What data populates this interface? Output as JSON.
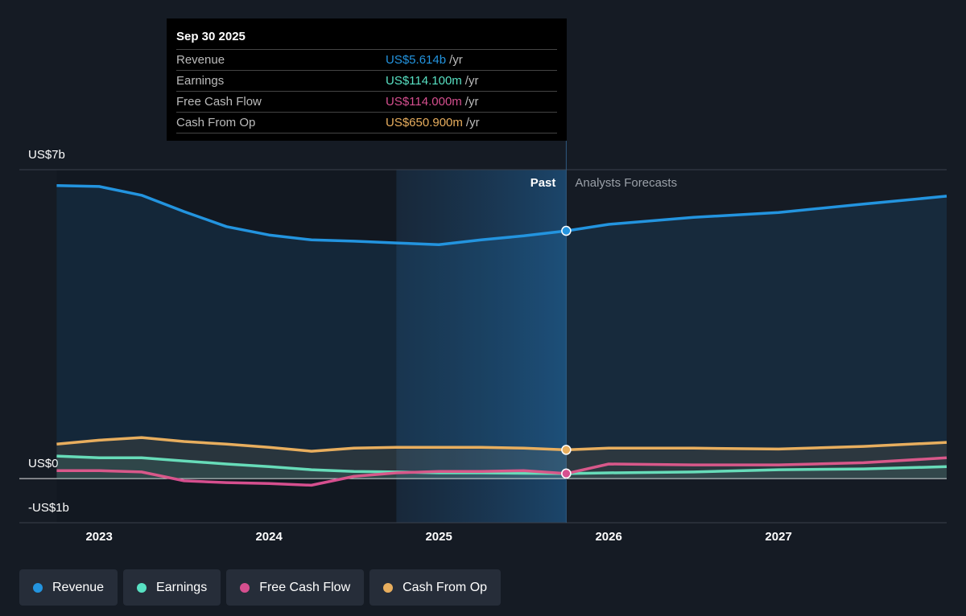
{
  "chart_data": {
    "type": "line",
    "xlim": [
      2022.53,
      2027.99
    ],
    "xticks": [
      2023,
      2024,
      2025,
      2026,
      2027
    ],
    "ylim": [
      -1,
      7
    ],
    "yticks": [
      {
        "value": 7,
        "label": "US$7b"
      },
      {
        "value": 0,
        "label": "US$0"
      },
      {
        "value": -1,
        "label": "-US$1b"
      }
    ],
    "grid": true,
    "past_label": "Past",
    "forecast_label": "Analysts Forecasts",
    "forecast_start": 2025.75,
    "past_shade": [
      2024.75,
      2025.75
    ],
    "x": [
      2022.75,
      2023.0,
      2023.25,
      2023.5,
      2023.75,
      2024.0,
      2024.25,
      2024.5,
      2024.75,
      2025.0,
      2025.25,
      2025.5,
      2025.75,
      2026.0,
      2026.5,
      2027.0,
      2027.5,
      2027.99
    ],
    "series": [
      {
        "name": "Revenue",
        "color": "#2394df",
        "area": true,
        "values": [
          6.64,
          6.62,
          6.42,
          6.05,
          5.71,
          5.52,
          5.41,
          5.38,
          5.34,
          5.3,
          5.41,
          5.5,
          5.614,
          5.76,
          5.92,
          6.03,
          6.22,
          6.4
        ]
      },
      {
        "name": "Earnings",
        "color": "#58e1c3",
        "area": true,
        "values": [
          0.51,
          0.47,
          0.47,
          0.4,
          0.33,
          0.27,
          0.2,
          0.16,
          0.15,
          0.13,
          0.13,
          0.12,
          0.1141,
          0.13,
          0.15,
          0.2,
          0.22,
          0.27
        ]
      },
      {
        "name": "Free Cash Flow",
        "color": "#d64f8f",
        "area": false,
        "values": [
          0.18,
          0.18,
          0.15,
          -0.05,
          -0.09,
          -0.11,
          -0.15,
          0.05,
          0.13,
          0.16,
          0.16,
          0.18,
          0.114,
          0.33,
          0.31,
          0.31,
          0.36,
          0.47
        ]
      },
      {
        "name": "Cash From Op",
        "color": "#e8ae5e",
        "area": true,
        "values": [
          0.78,
          0.87,
          0.93,
          0.84,
          0.78,
          0.71,
          0.62,
          0.69,
          0.71,
          0.71,
          0.71,
          0.69,
          0.651,
          0.69,
          0.69,
          0.67,
          0.73,
          0.82
        ]
      }
    ],
    "highlight_index": 12,
    "tooltip": {
      "date": "Sep 30 2025",
      "rows": [
        {
          "label": "Revenue",
          "value": "US$5.614b",
          "per": "/yr"
        },
        {
          "label": "Earnings",
          "value": "US$114.100m",
          "per": "/yr"
        },
        {
          "label": "Free Cash Flow",
          "value": "US$114.000m",
          "per": "/yr"
        },
        {
          "label": "Cash From Op",
          "value": "US$650.900m",
          "per": "/yr"
        }
      ]
    }
  }
}
